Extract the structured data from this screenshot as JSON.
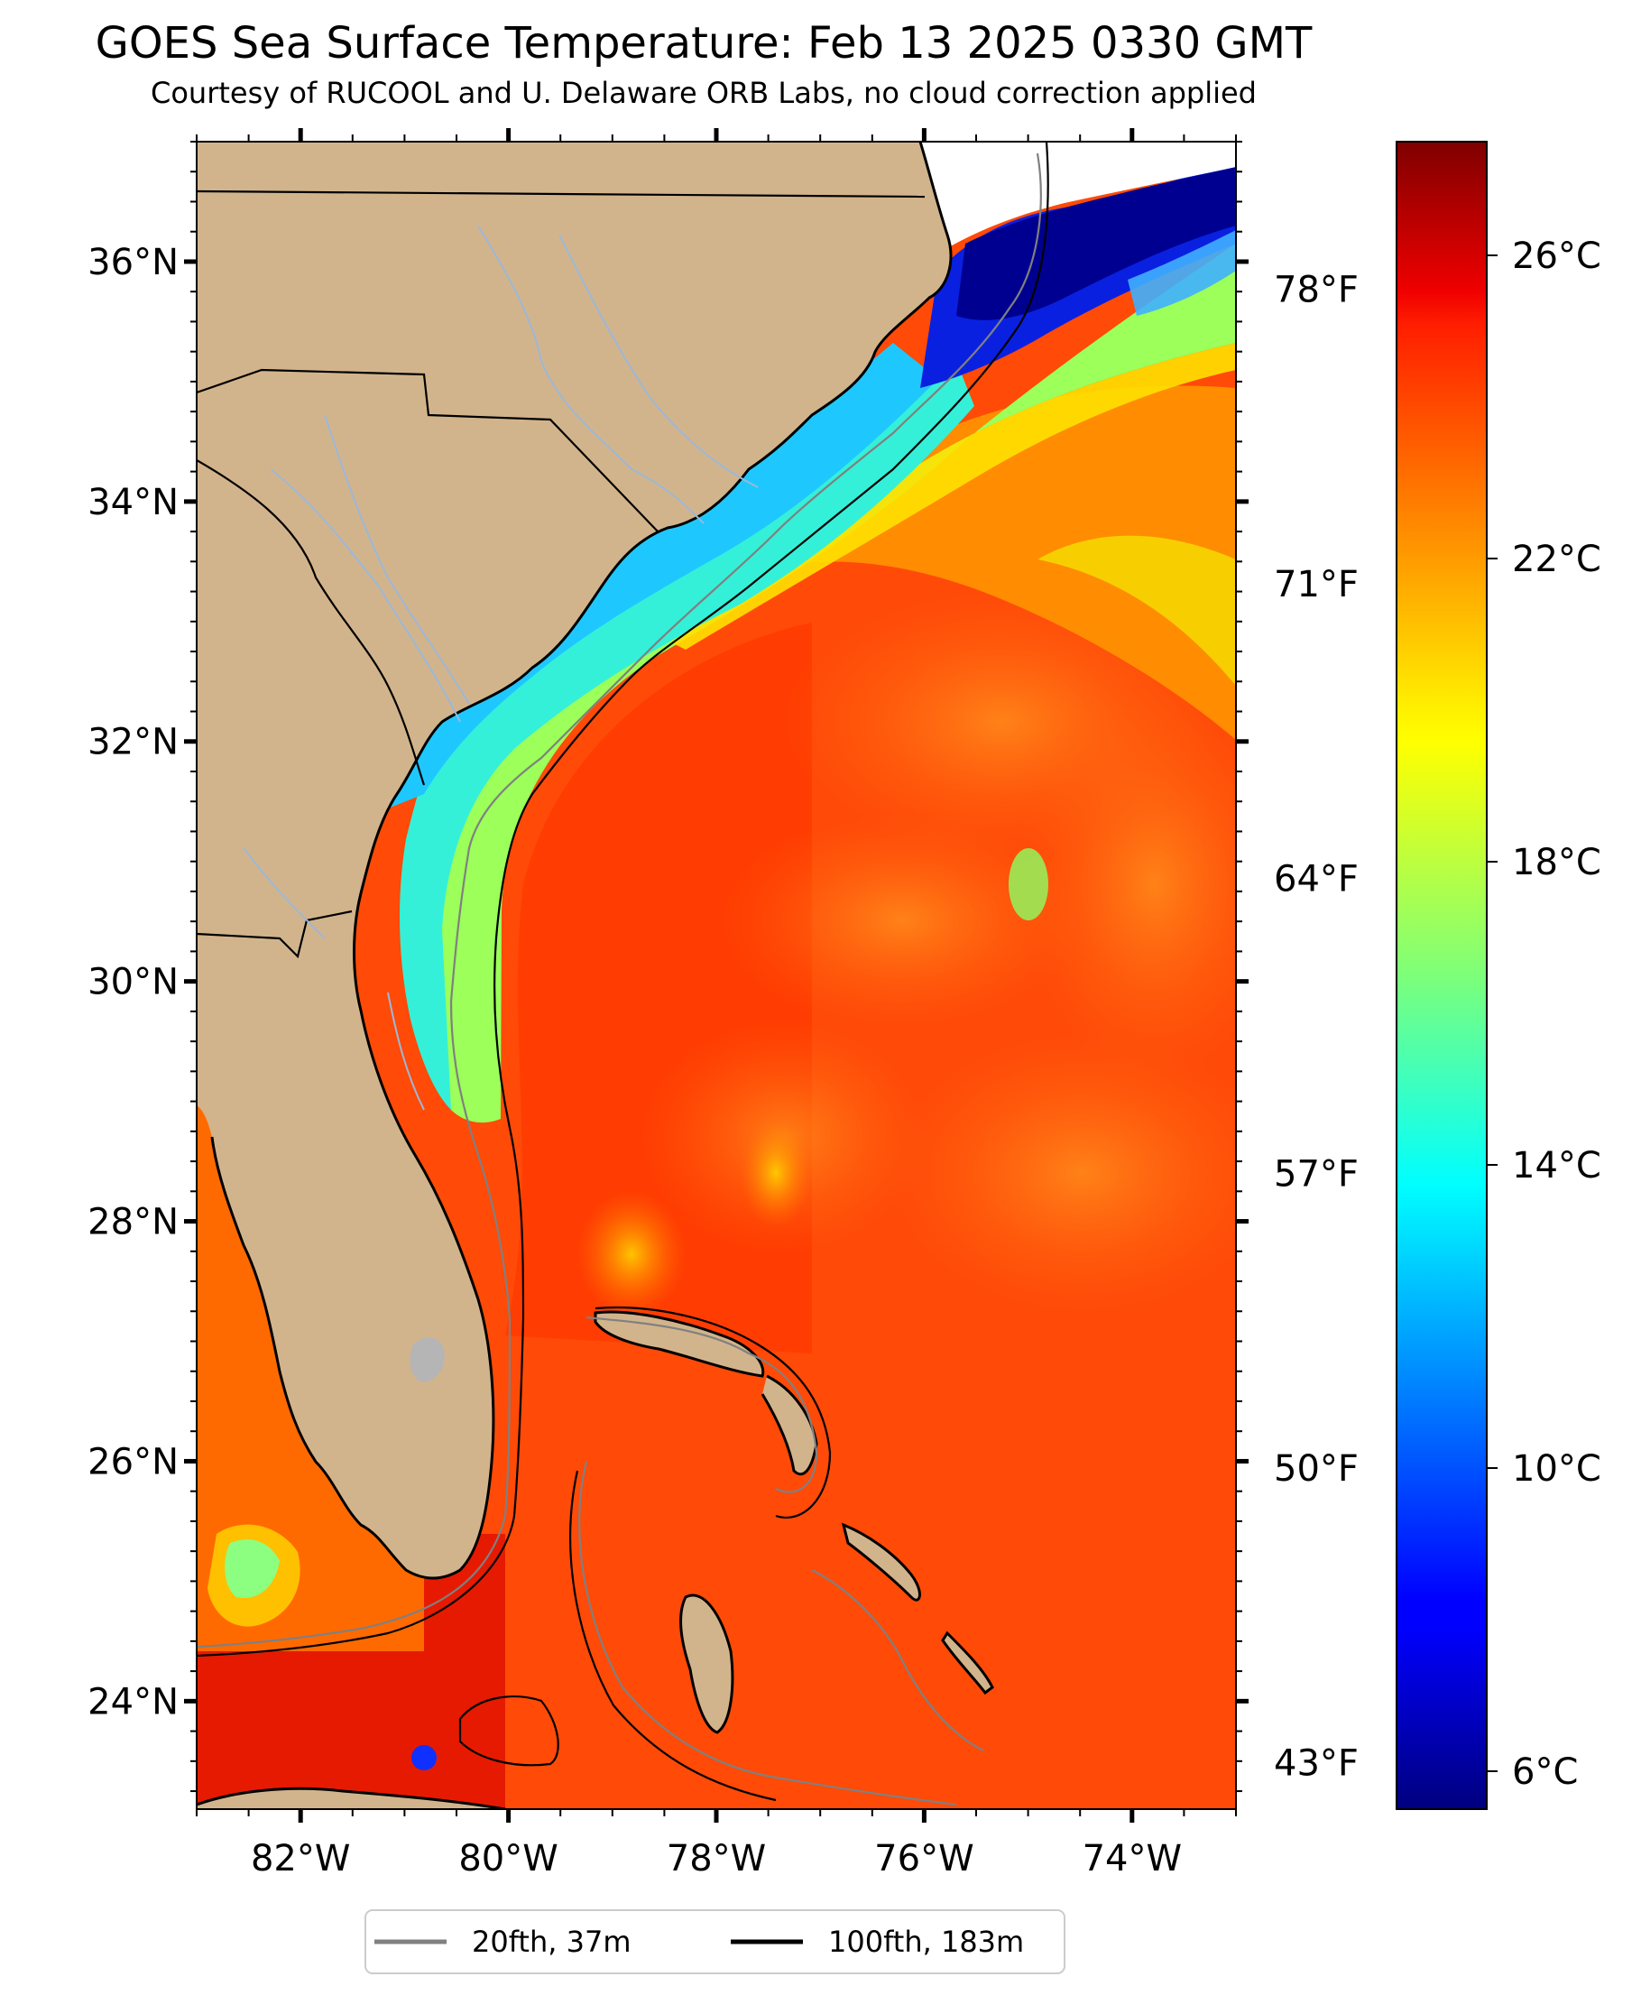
{
  "title": "GOES Sea Surface Temperature: Feb 13 2025 0330 GMT",
  "subtitle": "Courtesy of RUCOOL and U. Delaware ORB Labs, no cloud correction applied",
  "map": {
    "lon_range": [
      -83,
      -73
    ],
    "lat_range": [
      23.1,
      37.0
    ],
    "lon_ticks": [
      {
        "value": -82,
        "label": "82°W"
      },
      {
        "value": -80,
        "label": "80°W"
      },
      {
        "value": -78,
        "label": "78°W"
      },
      {
        "value": -76,
        "label": "76°W"
      },
      {
        "value": -74,
        "label": "74°W"
      }
    ],
    "lat_ticks": [
      {
        "value": 24,
        "label": "24°N"
      },
      {
        "value": 26,
        "label": "26°N"
      },
      {
        "value": 28,
        "label": "28°N"
      },
      {
        "value": 30,
        "label": "30°N"
      },
      {
        "value": 32,
        "label": "32°N"
      },
      {
        "value": 34,
        "label": "34°N"
      },
      {
        "value": 36,
        "label": "36°N"
      }
    ],
    "land_color": "#d2b48c",
    "coast_color": "#000000",
    "river_color": "#9cb8d8"
  },
  "colorbar": {
    "range_c": [
      5.5,
      27.5
    ],
    "colormap": "jet",
    "celsius_ticks": [
      {
        "value": 6,
        "label": "6°C"
      },
      {
        "value": 10,
        "label": "10°C"
      },
      {
        "value": 14,
        "label": "14°C"
      },
      {
        "value": 18,
        "label": "18°C"
      },
      {
        "value": 22,
        "label": "22°C"
      },
      {
        "value": 26,
        "label": "26°C"
      }
    ],
    "fahrenheit_ticks": [
      {
        "value": 43,
        "label": "43°F"
      },
      {
        "value": 50,
        "label": "50°F"
      },
      {
        "value": 57,
        "label": "57°F"
      },
      {
        "value": 64,
        "label": "64°F"
      },
      {
        "value": 71,
        "label": "71°F"
      },
      {
        "value": 78,
        "label": "78°F"
      }
    ]
  },
  "legend": {
    "placement": "bottom-center",
    "items": [
      {
        "label": "20fth, 37m",
        "color": "#808080"
      },
      {
        "label": "100fth, 183m",
        "color": "#000000"
      }
    ]
  }
}
